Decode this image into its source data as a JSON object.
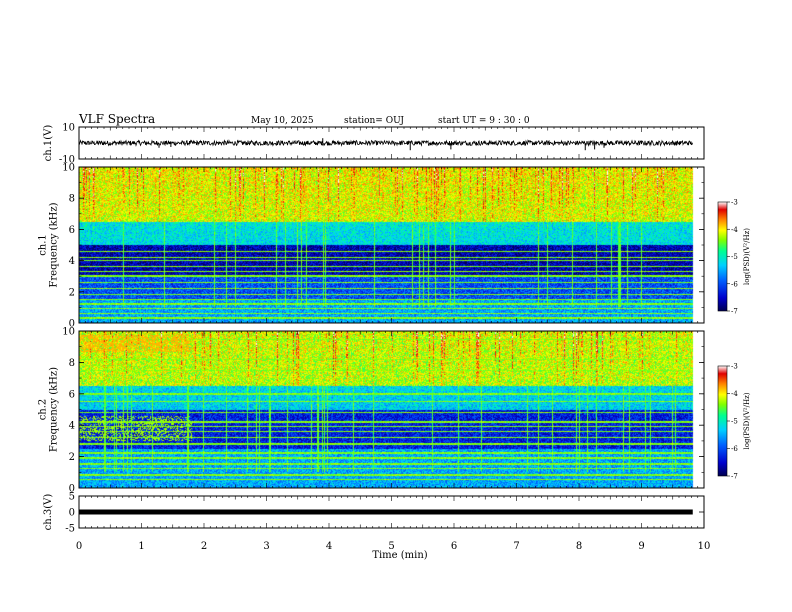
{
  "header": {
    "title": "VLF Spectra",
    "date": "May 10, 2025",
    "station": "station= OUJ",
    "start": "start  UT =   9 : 30 : 0"
  },
  "chart_data": [
    {
      "type": "line",
      "panel": "ch1-waveform",
      "ylabel": "ch.1(V)",
      "ylim": [
        -10,
        10
      ],
      "yticks": [
        "10",
        "-10"
      ],
      "xlim": [
        0,
        10
      ],
      "x_extent": [
        0,
        9.82
      ],
      "baseline": 0,
      "noise_amplitude": 1.5,
      "spikes": [
        {
          "x": 1.28,
          "y": -3
        },
        {
          "x": 1.47,
          "y": -2.5
        },
        {
          "x": 3.9,
          "y": 3
        },
        {
          "x": 5.3,
          "y": -4.5
        },
        {
          "x": 5.95,
          "y": -4
        },
        {
          "x": 8.1,
          "y": -4.5
        },
        {
          "x": 8.25,
          "y": -4
        },
        {
          "x": 8.4,
          "y": -3
        }
      ]
    },
    {
      "type": "heatmap",
      "panel": "ch1-spectrogram",
      "ylabel": "ch.1\nFrequency  (kHz)",
      "ylim": [
        0,
        10
      ],
      "yticks": [
        "0",
        "2",
        "4",
        "6",
        "8",
        "10"
      ],
      "xlim": [
        0,
        10
      ],
      "x_extent": [
        0,
        9.82
      ],
      "colorbar": {
        "label": "log(PSD)(V²/Hz)",
        "range": [
          -7,
          -3
        ],
        "ticks": [
          "-3",
          "-4",
          "-5",
          "-6",
          "-7"
        ]
      },
      "approx_log_psd": [
        {
          "freq_range_khz": [
            6.5,
            10
          ],
          "value": -4.2
        },
        {
          "freq_range_khz": [
            5,
            6.5
          ],
          "value": -5.2
        },
        {
          "freq_range_khz": [
            3,
            5
          ],
          "value": -6.6
        },
        {
          "freq_range_khz": [
            1.5,
            3
          ],
          "value": -6.0
        },
        {
          "freq_range_khz": [
            0,
            1.5
          ],
          "value": -5.5
        }
      ],
      "emphasized_khz": [
        0.3,
        0.6,
        0.9,
        1.2,
        1.5,
        1.8,
        2.2,
        2.6,
        3.0,
        3.3,
        3.6,
        4.0,
        4.2,
        4.6
      ]
    },
    {
      "type": "heatmap",
      "panel": "ch2-spectrogram",
      "ylabel": "ch.2\nFrequency  (kHz)",
      "ylim": [
        0,
        10
      ],
      "yticks": [
        "0",
        "2",
        "4",
        "6",
        "8",
        "10"
      ],
      "xlim": [
        0,
        10
      ],
      "x_extent": [
        0,
        9.82
      ],
      "colorbar": {
        "label": "log(PSD)(V²/Hz)",
        "range": [
          -7,
          -3
        ],
        "ticks": [
          "-3",
          "-4",
          "-5",
          "-6",
          "-7"
        ]
      },
      "approx_log_psd": [
        {
          "freq_range_khz": [
            6.5,
            10
          ],
          "value": -4.3
        },
        {
          "freq_range_khz": [
            5,
            6.5
          ],
          "value": -5.3
        },
        {
          "freq_range_khz": [
            2.5,
            5
          ],
          "value": -6.3
        },
        {
          "freq_range_khz": [
            0,
            2.5
          ],
          "value": -5.5
        }
      ],
      "emphasized_khz": [
        0.5,
        0.8,
        1.2,
        1.5,
        1.9,
        2.2,
        2.8,
        3.2,
        3.6,
        3.9,
        4.2,
        4.8,
        5.5,
        6.0,
        7.5,
        8.2,
        9.5
      ]
    },
    {
      "type": "line",
      "panel": "ch3-waveform",
      "ylabel": "ch.3(V)",
      "ylim": [
        -5,
        5
      ],
      "yticks": [
        "5",
        "0",
        "-5"
      ],
      "xlim": [
        0,
        10
      ],
      "x_extent": [
        0,
        9.82
      ],
      "baseline": 0,
      "noise_amplitude": 0.1
    }
  ],
  "x_axis": {
    "label": "Time  (min)",
    "ticks": [
      "0",
      "1",
      "2",
      "3",
      "4",
      "5",
      "6",
      "7",
      "8",
      "9",
      "10"
    ]
  },
  "colors": {
    "colormap": [
      "#000050",
      "#0000cc",
      "#0060ff",
      "#00d0ff",
      "#00ff90",
      "#80ff00",
      "#ffff00",
      "#ff8000",
      "#e00000",
      "#ffffff"
    ]
  }
}
